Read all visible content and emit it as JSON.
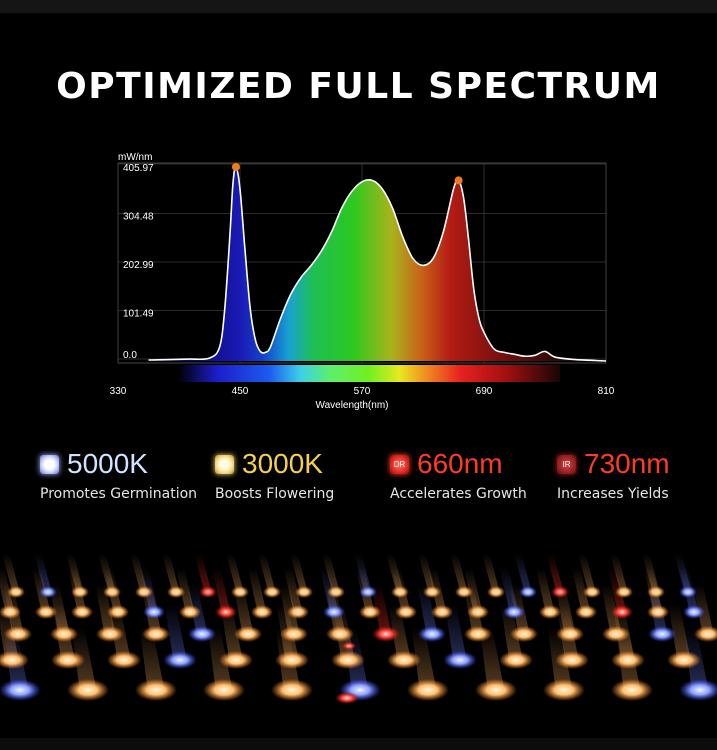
{
  "title": "OPTIMIZED FULL SPECTRUM",
  "chart_data": {
    "type": "area",
    "title": "",
    "ylabel": "mW/nm",
    "xlabel": "Wavelength(nm)",
    "xlim": [
      330,
      810
    ],
    "ylim": [
      0,
      405.97
    ],
    "x_ticks": [
      "330",
      "450",
      "570",
      "690",
      "810"
    ],
    "y_ticks": [
      "405.97",
      "304.48",
      "202.99",
      "101.49",
      "0.0"
    ],
    "grid": true,
    "series": [
      {
        "x": [
          360,
          380,
          400,
          420,
          430,
          435,
          440,
          443,
          446,
          450,
          455,
          460,
          465,
          470,
          475,
          480,
          490,
          500,
          510,
          520,
          530,
          540,
          550,
          560,
          570,
          580,
          590,
          600,
          610,
          620,
          630,
          640,
          650,
          660,
          665,
          670,
          675,
          680,
          685,
          690,
          700,
          710,
          720,
          730,
          740,
          750,
          760,
          780,
          800,
          810
        ],
        "y": [
          2,
          3,
          4,
          6,
          30,
          110,
          260,
          370,
          405.97,
          360,
          230,
          110,
          45,
          20,
          18,
          30,
          90,
          140,
          175,
          200,
          230,
          270,
          320,
          355,
          375,
          378,
          360,
          320,
          260,
          215,
          200,
          215,
          270,
          360,
          378,
          340,
          250,
          150,
          90,
          60,
          25,
          18,
          14,
          10,
          12,
          20,
          8,
          3,
          1,
          0
        ]
      }
    ],
    "markers": [
      {
        "x": 446,
        "y": 405.97,
        "color": "#f07a1e"
      },
      {
        "x": 665,
        "y": 378,
        "color": "#f07a1e"
      }
    ]
  },
  "features": [
    {
      "icon": "white-led-icon",
      "badge": "",
      "value": "5000K",
      "desc": "Promotes Germination"
    },
    {
      "icon": "warm-led-icon",
      "badge": "",
      "value": "3000K",
      "desc": "Boosts Flowering"
    },
    {
      "icon": "deep-red-led-icon",
      "badge": "DR",
      "value": "660nm",
      "desc": "Accelerates Growth"
    },
    {
      "icon": "infrared-led-icon",
      "badge": "IR",
      "value": "730nm",
      "desc": "Increases Yields"
    }
  ]
}
